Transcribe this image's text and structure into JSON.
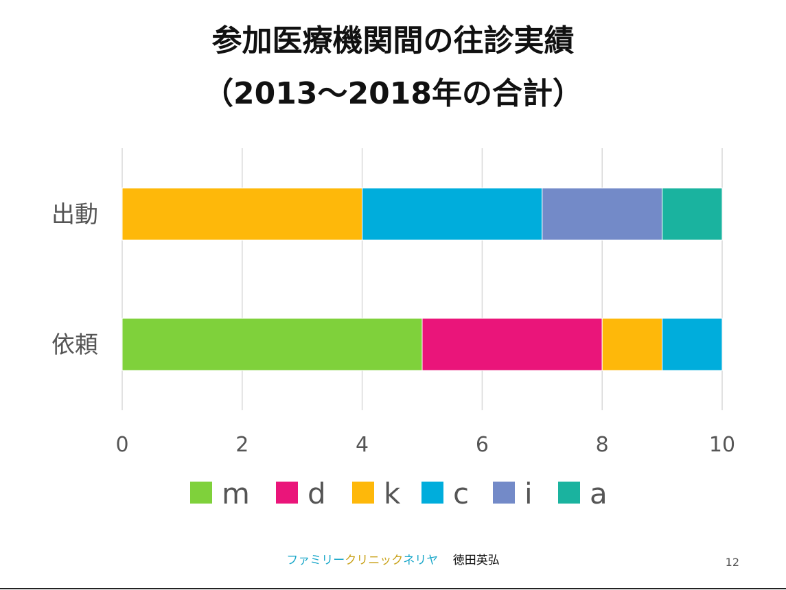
{
  "slide": {
    "title_line1": "参加医療機関間の往診実績",
    "title_line2": "（2013～2018年の合計）",
    "footer_brand_part1": "ファミリー",
    "footer_brand_part2": "クリニック",
    "footer_brand_part3": "ネリヤ",
    "footer_author": "徳田英弘",
    "page_number": "12"
  },
  "chart_data": {
    "type": "bar",
    "orientation": "horizontal",
    "stacked": true,
    "categories": [
      "出動",
      "依頼"
    ],
    "xlim": [
      0,
      10
    ],
    "xticks": [
      0,
      2,
      4,
      6,
      8,
      10
    ],
    "grid": true,
    "legend_position": "bottom",
    "series": [
      {
        "name": "m",
        "color": "#7fd13b",
        "values": [
          0,
          5
        ]
      },
      {
        "name": "d",
        "color": "#ea157a",
        "values": [
          0,
          3
        ]
      },
      {
        "name": "k",
        "color": "#feb80a",
        "values": [
          4,
          1
        ]
      },
      {
        "name": "c",
        "color": "#00addc",
        "values": [
          3,
          1
        ]
      },
      {
        "name": "i",
        "color": "#738ac8",
        "values": [
          2,
          0
        ]
      },
      {
        "name": "a",
        "color": "#1ab39f",
        "values": [
          1,
          0
        ]
      }
    ]
  }
}
